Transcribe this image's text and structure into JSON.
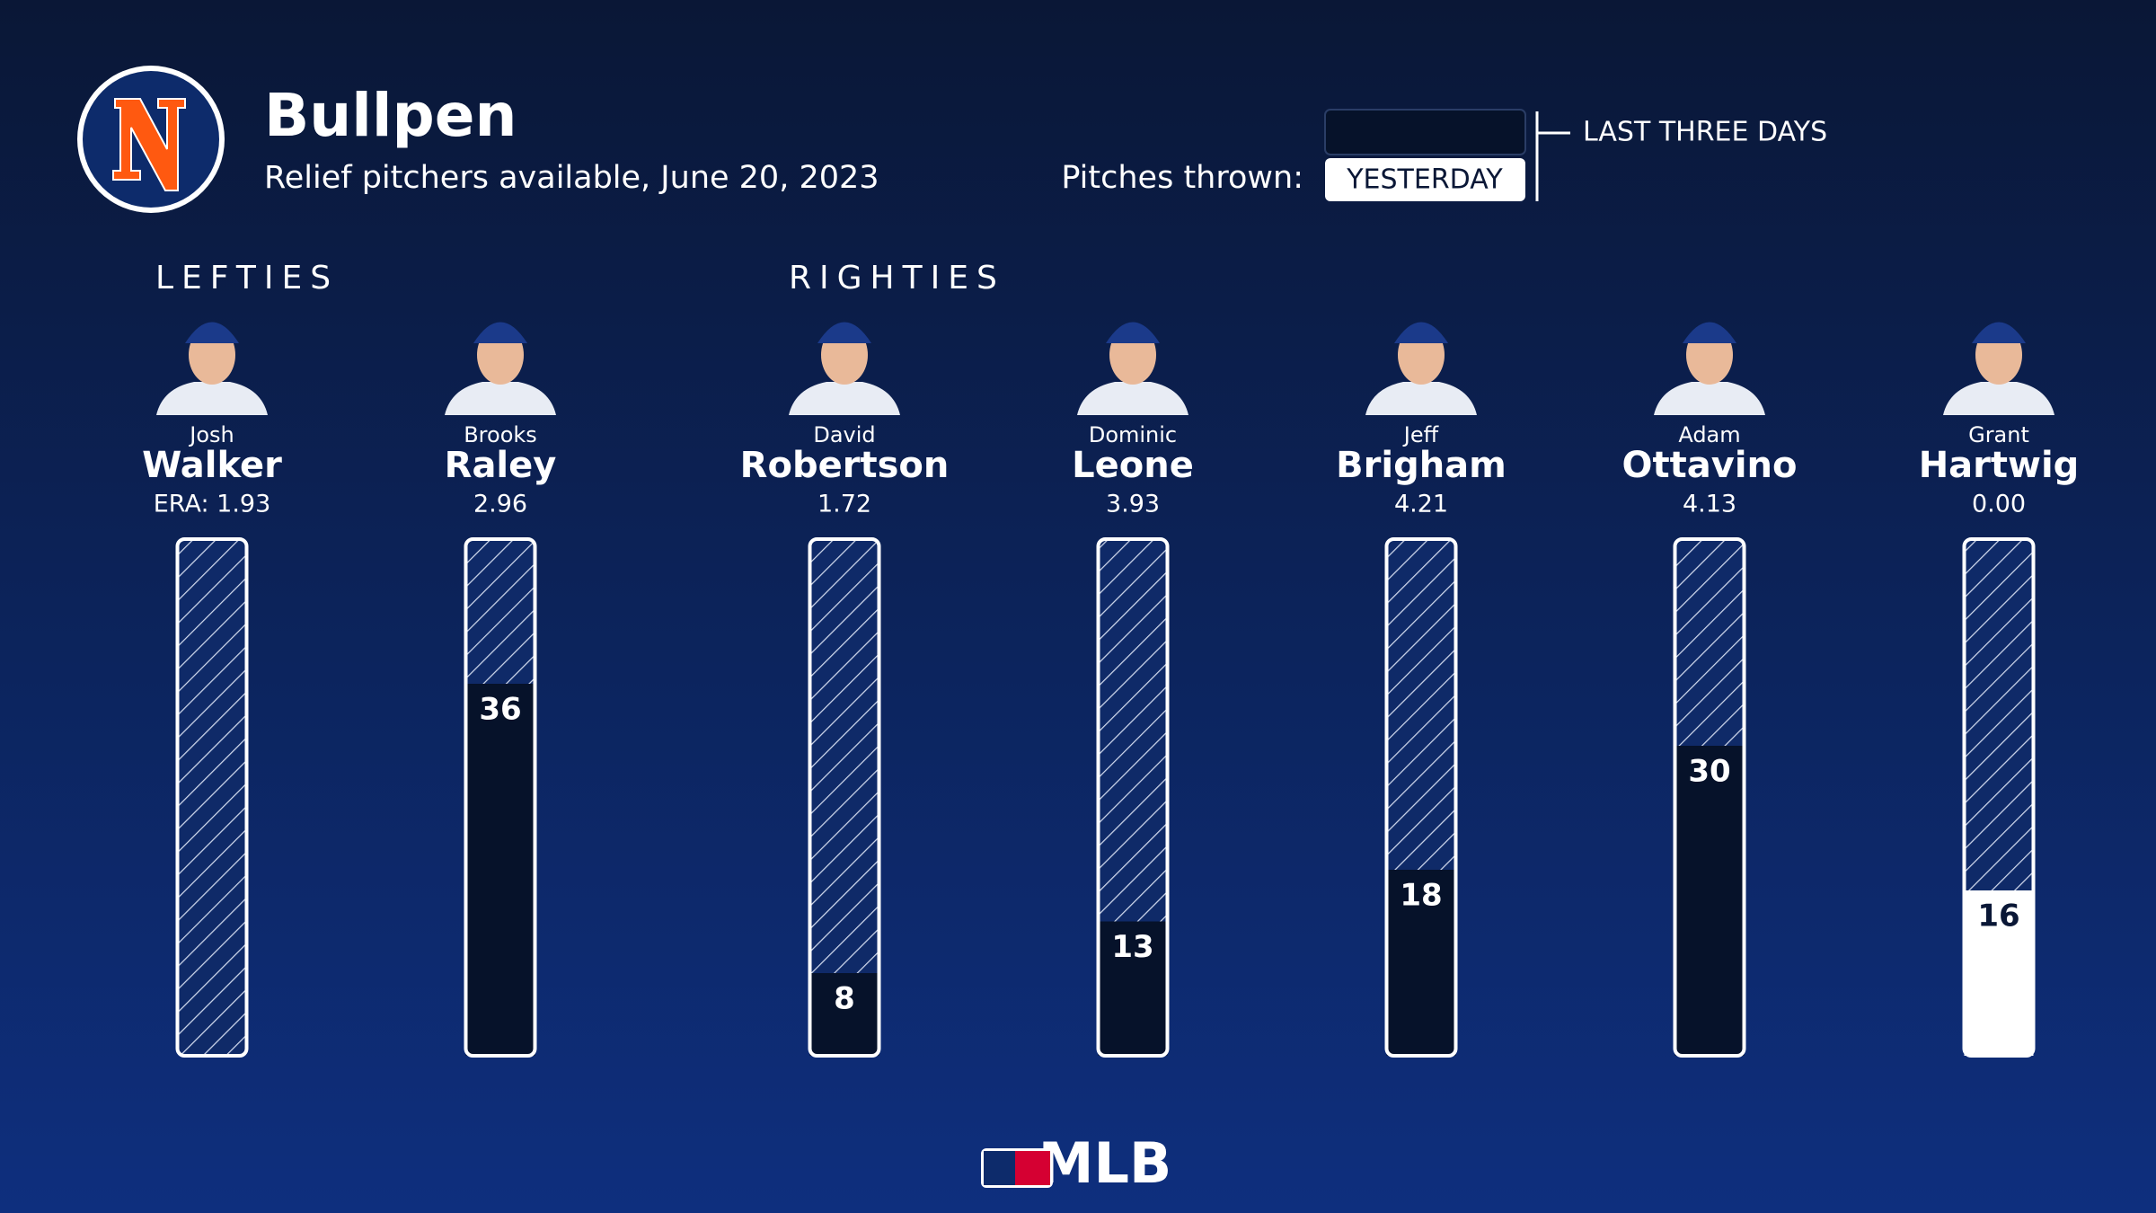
{
  "chart_data": {
    "type": "bar",
    "title": "Bullpen",
    "subtitle": "Relief pitchers available, June 20, 2023",
    "legend_title": "Pitches thrown:",
    "groups": [
      "LEFTIES",
      "RIGHTIES"
    ],
    "first_names": [
      "Josh",
      "Brooks",
      "David",
      "Dominic",
      "Jeff",
      "Adam",
      "Grant"
    ],
    "categories": [
      "Walker",
      "Raley",
      "Robertson",
      "Leone",
      "Brigham",
      "Ottavino",
      "Hartwig"
    ],
    "era_labels": [
      "ERA: 1.93",
      "2.96",
      "1.72",
      "3.93",
      "4.21",
      "4.13",
      "0.00"
    ],
    "series": [
      {
        "name": "LAST THREE DAYS",
        "color": "#06122a",
        "values": [
          0,
          36,
          8,
          13,
          18,
          30,
          null
        ]
      },
      {
        "name": "YESTERDAY",
        "color": "#ffffff",
        "values": [
          null,
          null,
          null,
          null,
          null,
          null,
          16
        ]
      }
    ],
    "ylim": [
      0,
      50
    ],
    "footer": "MLB"
  }
}
